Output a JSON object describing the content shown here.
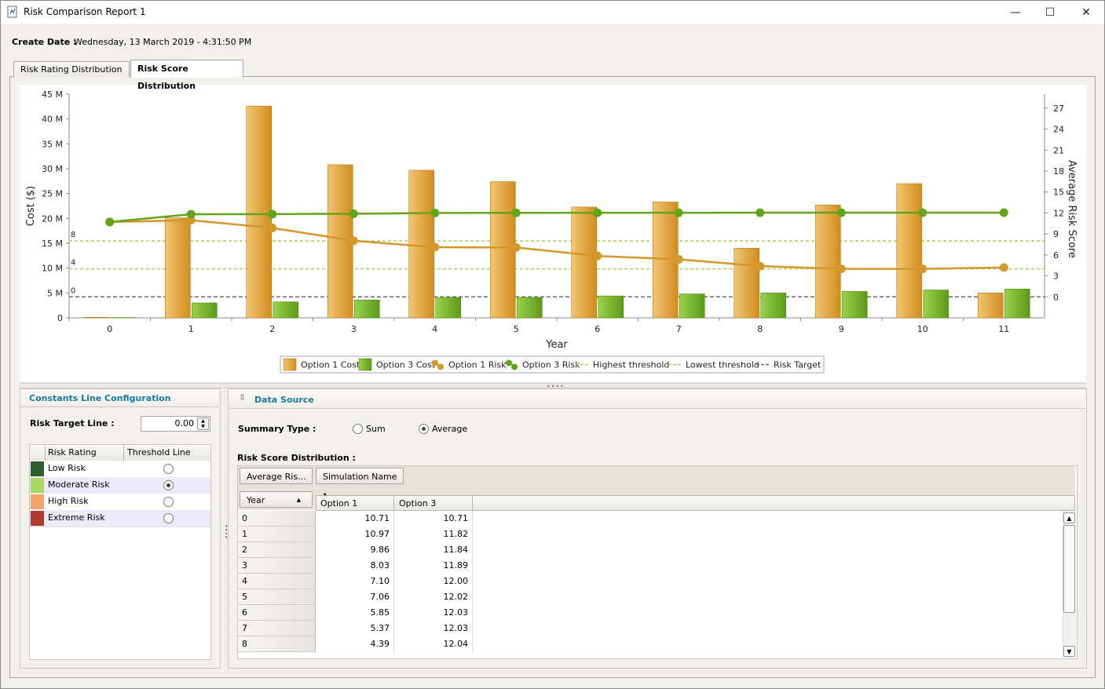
{
  "window": {
    "title": "Risk Comparison Report 1",
    "minimize_glyph": "—",
    "maximize_glyph": "☐",
    "close_glyph": "✕"
  },
  "header": {
    "create_date_label": "Create Date :",
    "create_date_value": "Wednesday, 13 March 2019 - 4:31:50 PM"
  },
  "tabs": [
    {
      "label": "Risk Rating Distribution",
      "active": false
    },
    {
      "label": "Risk Score Distribution",
      "active": true
    }
  ],
  "chart_data": {
    "type": "bar",
    "categories": [
      "0",
      "1",
      "2",
      "3",
      "4",
      "5",
      "6",
      "7",
      "8",
      "9",
      "10",
      "11"
    ],
    "xlabel": "Year",
    "ylabel": "Cost ($)",
    "y2label": "Average Risk Score",
    "ylim": [
      0,
      45
    ],
    "y2lim": [
      -3,
      29
    ],
    "y_ticks": [
      "0",
      "5 M",
      "10 M",
      "15 M",
      "20 M",
      "25 M",
      "30 M",
      "35 M",
      "40 M",
      "45 M"
    ],
    "y2_ticks": [
      "0",
      "3",
      "6",
      "9",
      "12",
      "15",
      "18",
      "21",
      "24",
      "27"
    ],
    "bar_series": [
      {
        "name": "Option 1 Cost",
        "color": "#e0a23c",
        "values": [
          0.1,
          20.1,
          42.6,
          30.8,
          29.7,
          27.4,
          22.3,
          23.3,
          14.0,
          22.7,
          27.0,
          5.0
        ]
      },
      {
        "name": "Option 3 Cost",
        "color": "#7ab52e",
        "values": [
          0.05,
          3.0,
          3.2,
          3.6,
          4.1,
          4.1,
          4.4,
          4.8,
          5.0,
          5.3,
          5.6,
          5.8
        ]
      }
    ],
    "line_series": [
      {
        "name": "Option 1 Risk",
        "color": "#d4972a",
        "values": [
          10.71,
          10.97,
          9.86,
          8.03,
          7.1,
          7.06,
          5.85,
          5.37,
          4.39,
          4.01,
          4.0,
          4.2
        ]
      },
      {
        "name": "Option 3 Risk",
        "color": "#62a51b",
        "values": [
          10.71,
          11.82,
          11.84,
          11.89,
          12.0,
          12.02,
          12.03,
          12.03,
          12.04,
          12.05,
          12.05,
          12.05
        ]
      }
    ],
    "constant_lines": [
      {
        "name": "Highest threshold",
        "value": 8,
        "label": "8",
        "color": "#a6d35a"
      },
      {
        "name": "Lowest threshold",
        "value": 4,
        "label": "4",
        "color": "#a6d35a"
      },
      {
        "name": "Risk Target",
        "value": 0,
        "label": "0",
        "color": "#6a6a6a"
      }
    ],
    "legend": [
      "Option 1 Cost",
      "Option 3 Cost",
      "Option 1 Risk",
      "Option 3 Risk",
      "Highest threshold",
      "Lowest threshold",
      "Risk Target"
    ],
    "legend_position": "bottom-center",
    "grid": false
  },
  "constants_panel": {
    "title": "Constants Line Configuration",
    "risk_target_label": "Risk Target Line :",
    "risk_target_value": "0.00",
    "columns": [
      "Risk Rating",
      "Threshold Line"
    ],
    "rows": [
      {
        "label": "Low Risk",
        "color": "#2e5e2e",
        "selected": false
      },
      {
        "label": "Moderate Risk",
        "color": "#a9d860",
        "selected": true
      },
      {
        "label": "High Risk",
        "color": "#f4a46a",
        "selected": false
      },
      {
        "label": "Extreme Risk",
        "color": "#b03a30",
        "selected": false
      }
    ]
  },
  "data_source_panel": {
    "title": "Data Source",
    "summary_type_label": "Summary Type :",
    "options": [
      {
        "label": "Sum",
        "selected": false
      },
      {
        "label": "Average",
        "selected": true
      }
    ],
    "distribution_label": "Risk Score Distribution :",
    "pivot_data_field": "Average Ris...",
    "pivot_column_field": "Simulation Name",
    "pivot_row_field": "Year",
    "columns": [
      "Option 1",
      "Option 3"
    ],
    "rows": [
      {
        "year": "0",
        "v1": "10.71",
        "v3": "10.71"
      },
      {
        "year": "1",
        "v1": "10.97",
        "v3": "11.82"
      },
      {
        "year": "2",
        "v1": "9.86",
        "v3": "11.84"
      },
      {
        "year": "3",
        "v1": "8.03",
        "v3": "11.89"
      },
      {
        "year": "4",
        "v1": "7.10",
        "v3": "12.00"
      },
      {
        "year": "5",
        "v1": "7.06",
        "v3": "12.02"
      },
      {
        "year": "6",
        "v1": "5.85",
        "v3": "12.03"
      },
      {
        "year": "7",
        "v1": "5.37",
        "v3": "12.03"
      },
      {
        "year": "8",
        "v1": "4.39",
        "v3": "12.04"
      }
    ]
  }
}
